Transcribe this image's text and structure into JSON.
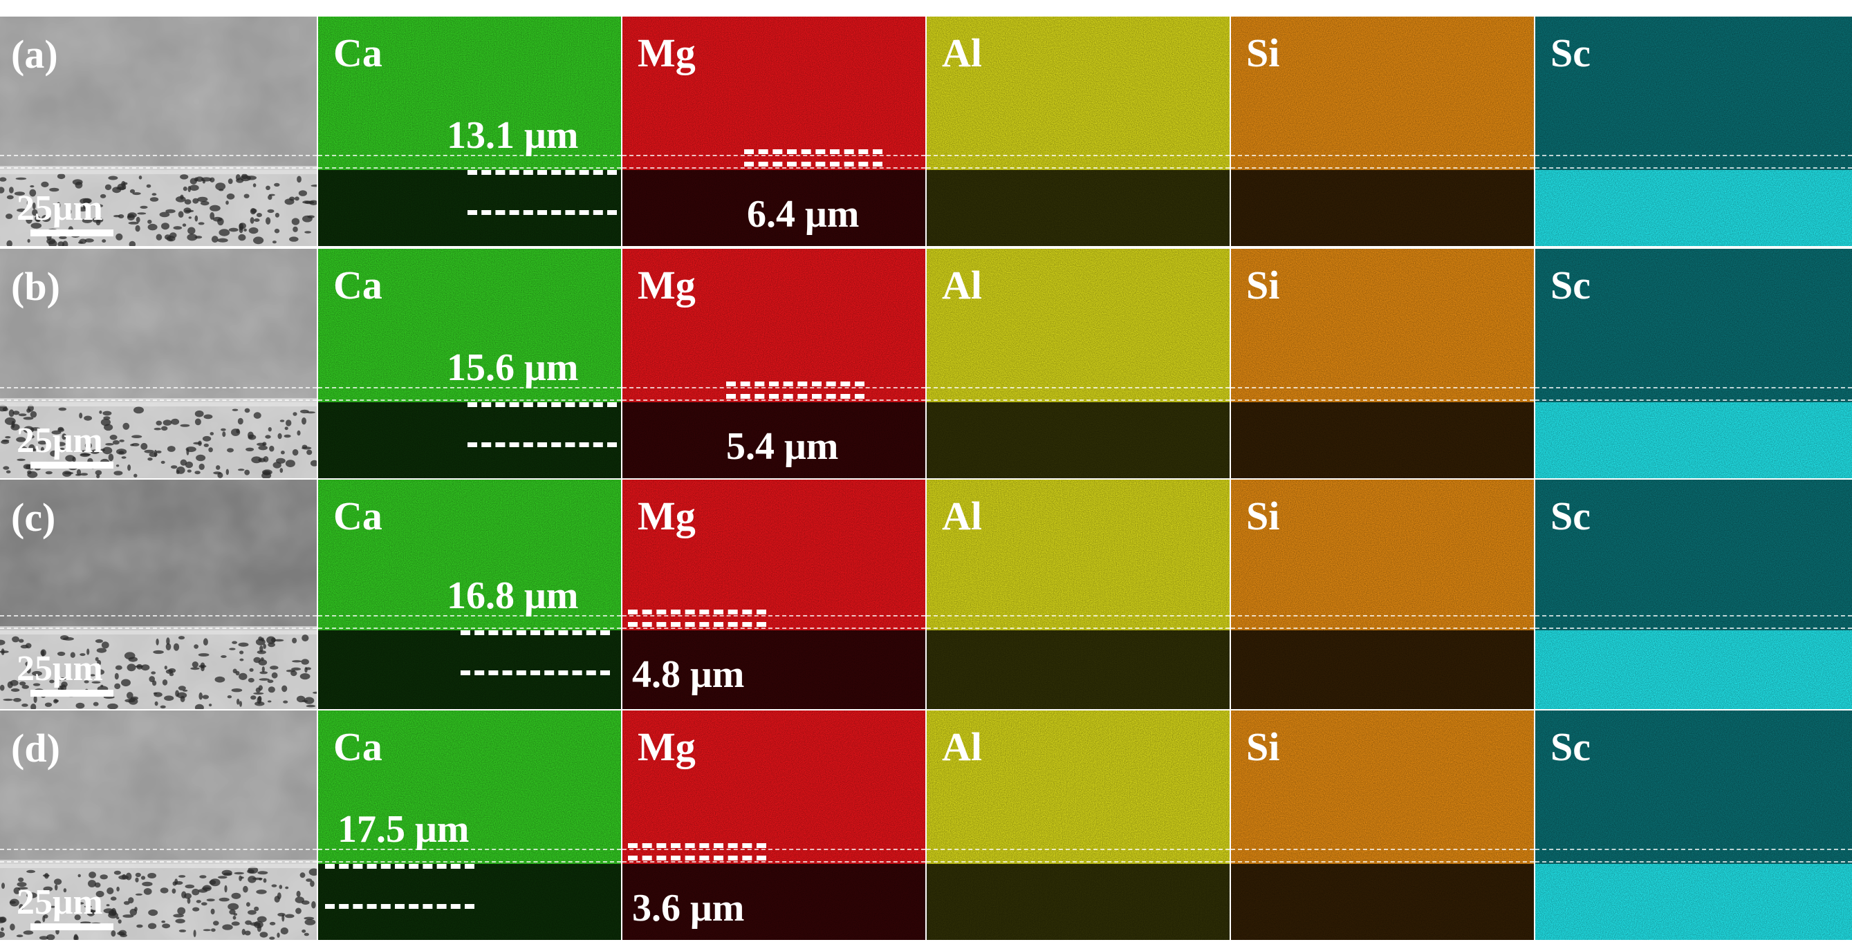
{
  "rows": [
    {
      "label": "(a)",
      "scale_bar": "25μm",
      "ca_measurement": "13.1 μm",
      "mg_measurement": "6.4 μm"
    },
    {
      "label": "(b)",
      "scale_bar": "25μm",
      "ca_measurement": "15.6 μm",
      "mg_measurement": "5.4 μm"
    },
    {
      "label": "(c)",
      "scale_bar": "25μm",
      "ca_measurement": "16.8 μm",
      "mg_measurement": "4.8 μm"
    },
    {
      "label": "(d)",
      "scale_bar": "25μm",
      "ca_measurement": "17.5 μm",
      "mg_measurement": "3.6 μm"
    }
  ],
  "elements": [
    {
      "symbol": "Ca",
      "color": "#33cc22"
    },
    {
      "symbol": "Mg",
      "color": "#e8141a"
    },
    {
      "symbol": "Al",
      "color": "#d8d81a"
    },
    {
      "symbol": "Si",
      "color": "#e38a12"
    },
    {
      "symbol": "Sc",
      "color": "#0a6f73",
      "substrate_color": "#22e6ec"
    }
  ]
}
